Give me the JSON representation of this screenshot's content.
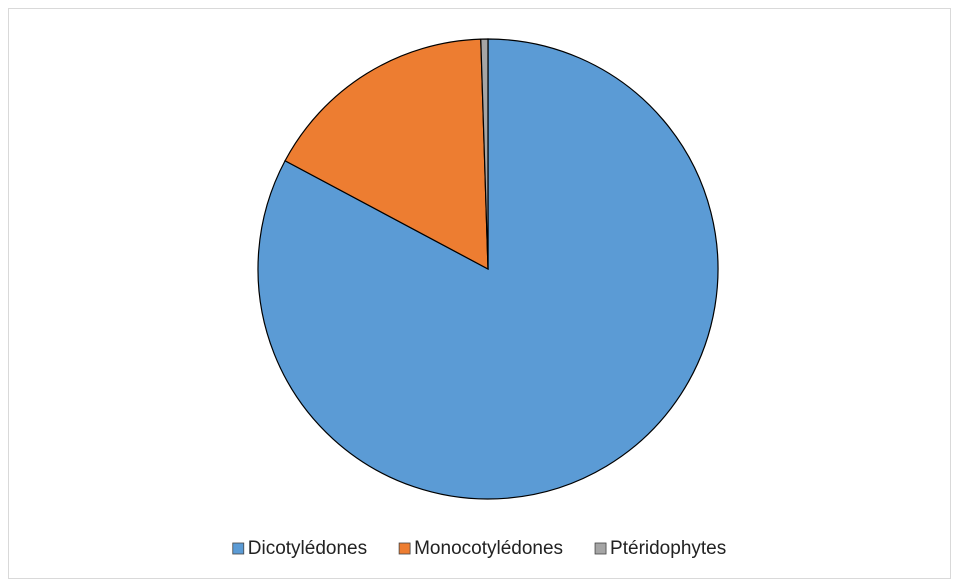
{
  "chart_data": {
    "type": "pie",
    "categories": [
      "Dicotylédones",
      "Monocotylédones",
      "Ptéridophytes"
    ],
    "values": [
      82.8,
      16.7,
      0.5
    ],
    "colors": [
      "#5b9bd5",
      "#ed7d31",
      "#a5a5a5"
    ],
    "legend": "bottom"
  }
}
